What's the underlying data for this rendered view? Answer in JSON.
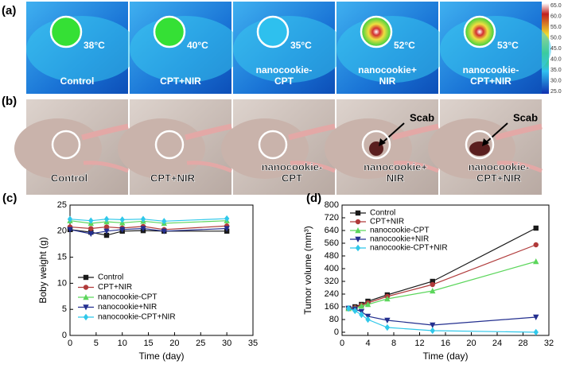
{
  "panel_a": {
    "label": "(a)",
    "images": [
      {
        "temp": "38°C",
        "caption": [
          "Control"
        ]
      },
      {
        "temp": "40°C",
        "caption": [
          "CPT+NIR"
        ]
      },
      {
        "temp": "35°C",
        "caption": [
          "nanocookie-",
          "CPT"
        ]
      },
      {
        "temp": "52°C",
        "caption": [
          "nanocookie+",
          "NIR"
        ]
      },
      {
        "temp": "53°C",
        "caption": [
          "nanocookie-",
          "CPT+NIR"
        ]
      }
    ],
    "scale_labels": [
      "65.0",
      "60.0",
      "55.0",
      "50.0",
      "45.0",
      "40.0",
      "35.0",
      "30.0",
      "25.0"
    ]
  },
  "panel_b": {
    "label": "(b)",
    "images": [
      {
        "caption": [
          "Control"
        ]
      },
      {
        "caption": [
          "CPT+NIR"
        ]
      },
      {
        "caption": [
          "nanocookie-",
          "CPT"
        ]
      },
      {
        "caption": [
          "nanocookie+",
          "NIR"
        ],
        "annotation": "Scab"
      },
      {
        "caption": [
          "nanocookie-",
          "CPT+NIR"
        ],
        "annotation": "Scab"
      }
    ]
  },
  "chart_data": [
    {
      "type": "line",
      "label": "(c)",
      "x_label": "Time (day)",
      "y_label": "Boby weight (g)",
      "x": [
        0,
        4,
        7,
        10,
        14,
        18,
        30
      ],
      "xlim": [
        0,
        35
      ],
      "xticks": [
        0,
        5,
        10,
        15,
        20,
        25,
        30,
        35
      ],
      "ylim": [
        0,
        25
      ],
      "yticks": [
        0,
        5,
        10,
        15,
        20,
        25
      ],
      "series": [
        {
          "name": "Control",
          "color": "#1a1a1a",
          "marker": "square",
          "values": [
            20.3,
            19.8,
            19.2,
            20.0,
            20.1,
            20.0,
            20.0
          ]
        },
        {
          "name": "CPT+NIR",
          "color": "#b03a3a",
          "marker": "circle",
          "values": [
            20.8,
            20.5,
            20.8,
            20.6,
            20.9,
            20.3,
            21.0
          ]
        },
        {
          "name": "nanocookie-CPT",
          "color": "#5cd65c",
          "marker": "triangle-up",
          "values": [
            22.0,
            21.5,
            21.8,
            21.6,
            21.9,
            21.5,
            22.0
          ]
        },
        {
          "name": "nanocookie+NIR",
          "color": "#232f8f",
          "marker": "triangle-down",
          "values": [
            20.3,
            19.5,
            20.0,
            20.3,
            20.5,
            20.0,
            20.5
          ]
        },
        {
          "name": "nanocookie-CPT+NIR",
          "color": "#2fc8ea",
          "marker": "diamond",
          "values": [
            22.3,
            22.0,
            22.3,
            22.2,
            22.3,
            21.9,
            22.4
          ]
        }
      ]
    },
    {
      "type": "line",
      "label": "(d)",
      "x_label": "Time (day)",
      "y_label": "Tumor volume (mm³)",
      "x": [
        1,
        2,
        3,
        4,
        7,
        14,
        30
      ],
      "xlim": [
        0,
        32
      ],
      "xticks": [
        0,
        4,
        8,
        12,
        16,
        20,
        24,
        28,
        32
      ],
      "ylim": [
        -20,
        800
      ],
      "yticks": [
        0,
        80,
        160,
        240,
        320,
        400,
        480,
        560,
        640,
        720,
        800
      ],
      "series": [
        {
          "name": "Control",
          "color": "#1a1a1a",
          "marker": "square",
          "values": [
            150,
            160,
            175,
            195,
            235,
            320,
            655
          ]
        },
        {
          "name": "CPT+NIR",
          "color": "#b03a3a",
          "marker": "circle",
          "values": [
            150,
            155,
            170,
            185,
            225,
            300,
            550
          ]
        },
        {
          "name": "nanocookie-CPT",
          "color": "#5cd65c",
          "marker": "triangle-up",
          "values": [
            150,
            150,
            165,
            175,
            210,
            260,
            445
          ]
        },
        {
          "name": "nanocookie+NIR",
          "color": "#232f8f",
          "marker": "triangle-down",
          "values": [
            150,
            145,
            130,
            100,
            75,
            45,
            95
          ]
        },
        {
          "name": "nanocookie-CPT+NIR",
          "color": "#2fc8ea",
          "marker": "diamond",
          "values": [
            150,
            135,
            110,
            80,
            30,
            10,
            0
          ]
        }
      ]
    }
  ]
}
